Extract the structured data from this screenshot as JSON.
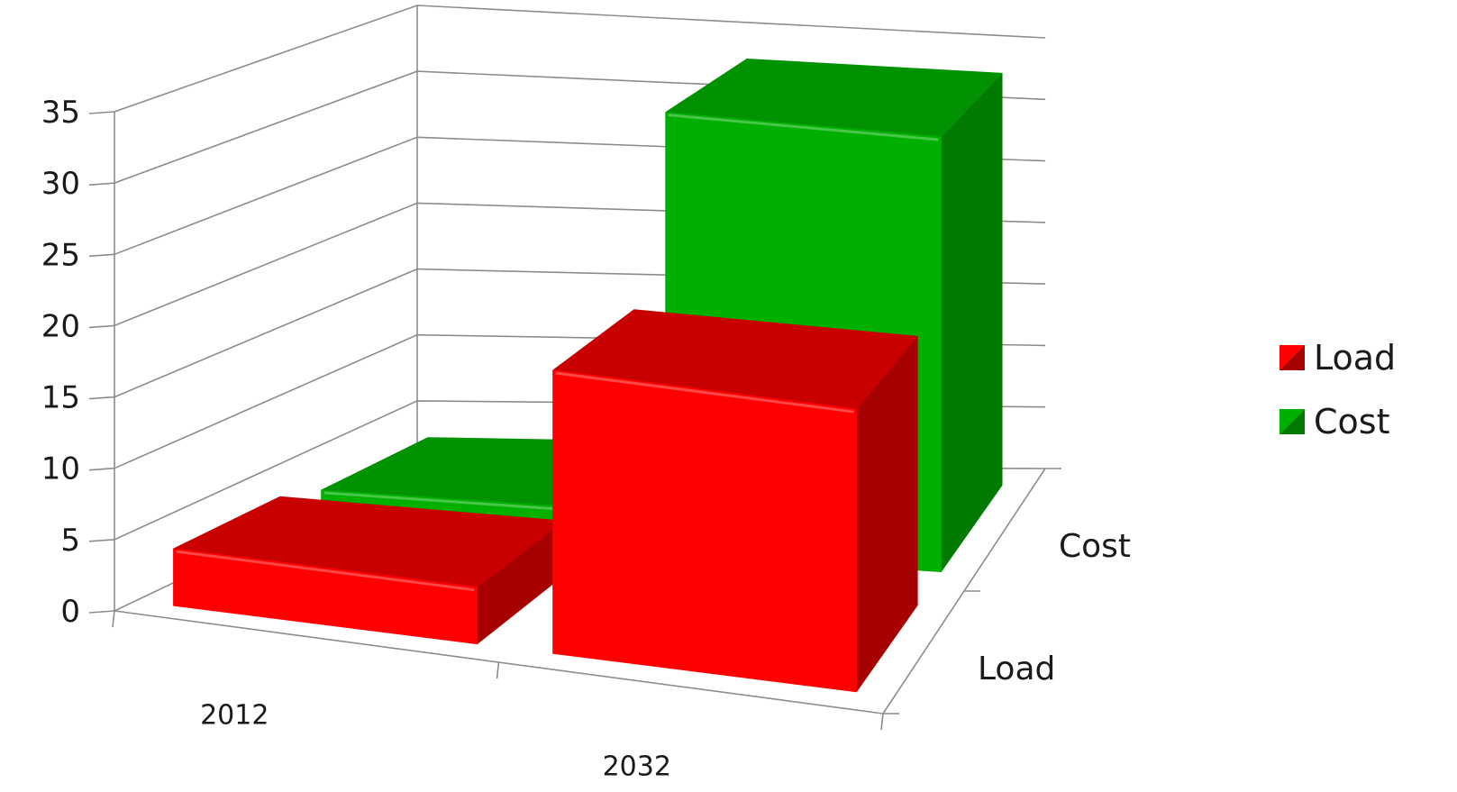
{
  "chart_data": {
    "type": "bar",
    "subtype": "3d-column",
    "categories": [
      "2012",
      "2032"
    ],
    "series": [
      {
        "name": "Load",
        "values": [
          4,
          20
        ],
        "color": "#ff0000",
        "side_color": "#a60000",
        "top_color": "#c80000"
      },
      {
        "name": "Cost",
        "values": [
          3,
          33
        ],
        "color": "#00b000",
        "side_color": "#007a00",
        "top_color": "#009200"
      }
    ],
    "depth_labels": [
      "Load",
      "Cost"
    ],
    "ylim": [
      0,
      35
    ],
    "y_ticks": [
      "0",
      "5",
      "10",
      "15",
      "20",
      "25",
      "30",
      "35"
    ],
    "grid": true,
    "legend": {
      "position": "right",
      "items": [
        {
          "label": "Load",
          "icon": "red-square-icon"
        },
        {
          "label": "Cost",
          "icon": "green-square-icon"
        }
      ]
    }
  }
}
